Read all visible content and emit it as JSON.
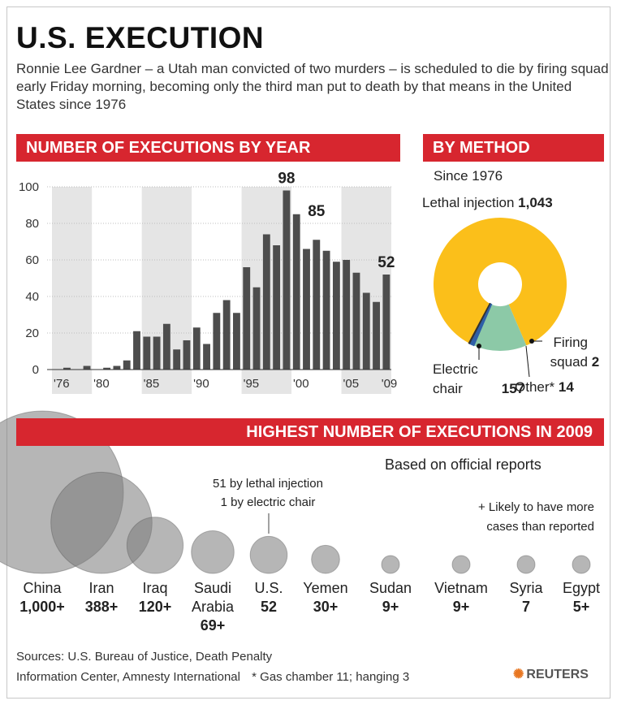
{
  "header": {
    "title": "U.S. EXECUTION",
    "subtitle": "Ronnie Lee Gardner – a Utah man convicted of two murders – is scheduled to die by firing squad early Friday morning, becoming only the third man put to death by that means in the United States since 1976"
  },
  "colors": {
    "accent_red": "#d7262f",
    "bar": "#4d4d4d",
    "band_shade": "#e5e5e5",
    "lethal": "#fbbf1a",
    "electric": "#8cc9a7",
    "other": "#2e5fa8",
    "firing": "#333333",
    "bubble": "#7a7a7a"
  },
  "chart_data": [
    {
      "type": "bar",
      "title": "NUMBER OF EXECUTIONS BY YEAR",
      "x": [
        1976,
        1977,
        1978,
        1979,
        1980,
        1981,
        1982,
        1983,
        1984,
        1985,
        1986,
        1987,
        1988,
        1989,
        1990,
        1991,
        1992,
        1993,
        1994,
        1995,
        1996,
        1997,
        1998,
        1999,
        2000,
        2001,
        2002,
        2003,
        2004,
        2005,
        2006,
        2007,
        2008,
        2009
      ],
      "values": [
        0,
        1,
        0,
        2,
        0,
        1,
        2,
        5,
        21,
        18,
        18,
        25,
        11,
        16,
        23,
        14,
        31,
        38,
        31,
        56,
        45,
        74,
        68,
        98,
        85,
        66,
        71,
        65,
        59,
        60,
        53,
        42,
        37,
        52
      ],
      "x_tick_labels": [
        "'76",
        "'80",
        "'85",
        "'90",
        "'95",
        "'00",
        "'05",
        "'09"
      ],
      "y_ticks": [
        0,
        20,
        40,
        60,
        80,
        100
      ],
      "ylim": [
        0,
        100
      ],
      "annotations": [
        {
          "x": 1999,
          "label": "98"
        },
        {
          "x": 2000,
          "label": "85"
        },
        {
          "x": 2009,
          "label": "52"
        }
      ]
    },
    {
      "type": "pie",
      "title": "BY METHOD",
      "subtitle": "Since 1976",
      "slices": [
        {
          "name": "Lethal injection",
          "value": 1043,
          "value_label": "1,043"
        },
        {
          "name": "Electric chair",
          "value": 157,
          "value_label": "157"
        },
        {
          "name": "Other*",
          "value": 14,
          "value_label": "14"
        },
        {
          "name": "Firing squad",
          "value": 2,
          "value_label": "2"
        }
      ]
    },
    {
      "type": "bubble",
      "title": "HIGHEST NUMBER OF EXECUTIONS IN 2009",
      "subtitle": "Based on official reports",
      "note_us_line1": "51 by lethal injection",
      "note_us_line2": "1 by electric chair",
      "note_plus_line1": "+ Likely to have more",
      "note_plus_line2": "cases than reported",
      "items": [
        {
          "country": [
            "China"
          ],
          "value": 1000,
          "label": "1,000+"
        },
        {
          "country": [
            "Iran"
          ],
          "value": 388,
          "label": "388+"
        },
        {
          "country": [
            "Iraq"
          ],
          "value": 120,
          "label": "120+"
        },
        {
          "country": [
            "Saudi",
            "Arabia"
          ],
          "value": 69,
          "label": "69+"
        },
        {
          "country": [
            "U.S."
          ],
          "value": 52,
          "label": "52"
        },
        {
          "country": [
            "Yemen"
          ],
          "value": 30,
          "label": "30+"
        },
        {
          "country": [
            "Sudan"
          ],
          "value": 9,
          "label": "9+"
        },
        {
          "country": [
            "Vietnam"
          ],
          "value": 9,
          "label": "9+"
        },
        {
          "country": [
            "Syria"
          ],
          "value": 7,
          "label": "7"
        },
        {
          "country": [
            "Egypt"
          ],
          "value": 5,
          "label": "5+"
        }
      ]
    }
  ],
  "footer": {
    "sources_line1": "Sources: U.S. Bureau of Justice, Death Penalty",
    "sources_line2": "Information Center, Amnesty International",
    "footnote": "* Gas chamber 11;   hanging 3",
    "brand": "REUTERS"
  }
}
